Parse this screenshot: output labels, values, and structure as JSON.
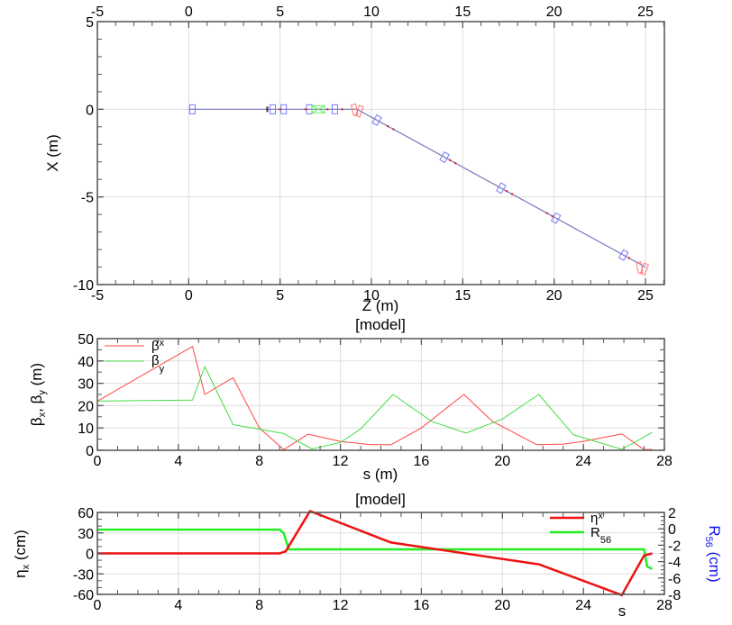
{
  "chart_data": [
    {
      "type": "line",
      "name": "floor-plan",
      "title": "",
      "xlabel": "Z (m)",
      "ylabel": "X (m)",
      "xlim": [
        -5,
        26
      ],
      "ylim": [
        -10,
        5
      ],
      "x_ticks": [
        "-5",
        "0",
        "5",
        "10",
        "15",
        "20",
        "25"
      ],
      "y_ticks": [
        "5",
        "0",
        "-5",
        "-10"
      ],
      "grid": true,
      "series": [
        {
          "name": "beamline",
          "color": "#7777bb",
          "x": [
            0,
            9.2,
            25.0
          ],
          "y": [
            0,
            0,
            -9.0
          ]
        }
      ],
      "elements": {
        "quadrupoles_blue": [
          0.2,
          4.6,
          5.2,
          6.6,
          8.0,
          10.3,
          14.0,
          17.1,
          20.1,
          23.8
        ],
        "solenoid_green": [
          7.1
        ],
        "bends_red": [
          9.2,
          24.8
        ]
      }
    },
    {
      "type": "line",
      "name": "beta-functions",
      "title": "[model]",
      "xlabel": "s (m)",
      "ylabel": "βx, βy (m)",
      "xlim": [
        0,
        28
      ],
      "ylim": [
        0,
        50
      ],
      "x_ticks": [
        "0",
        "4",
        "8",
        "12",
        "16",
        "20",
        "24",
        "28"
      ],
      "y_ticks": [
        "0",
        "10",
        "20",
        "30",
        "40",
        "50"
      ],
      "grid": true,
      "legend": [
        "βx",
        "βy"
      ],
      "legend_position": "upper-left",
      "series": [
        {
          "name": "βx",
          "color": "#ff4444",
          "x": [
            0,
            4.7,
            5.3,
            6.7,
            8,
            9.2,
            10.4,
            12,
            13.5,
            14.5,
            16,
            18.1,
            19.5,
            21.7,
            23,
            24,
            25.9,
            27,
            27.4
          ],
          "y": [
            22,
            46.5,
            25,
            32.5,
            10,
            0.3,
            7.2,
            4,
            2.5,
            2.5,
            10,
            25,
            13,
            2.5,
            2.8,
            4,
            7.3,
            0.3,
            0.4
          ]
        },
        {
          "name": "βy",
          "color": "#44dd44",
          "x": [
            0,
            4.7,
            5.3,
            6.7,
            9.2,
            10.6,
            12,
            13,
            14.6,
            16.5,
            18.2,
            20,
            21.8,
            23.5,
            25.9,
            27.4
          ],
          "y": [
            22,
            22.5,
            37.5,
            11.5,
            7.5,
            0.6,
            3.5,
            9.5,
            25,
            13,
            7.7,
            14,
            25,
            7,
            0.4,
            8
          ]
        }
      ]
    },
    {
      "type": "line",
      "name": "dispersion-r56",
      "title": "[model]",
      "xlabel": "s",
      "ylabel": "ηx (cm)",
      "ylabel_right": "R56 (cm)",
      "xlim": [
        0,
        28
      ],
      "ylim": [
        -60,
        60
      ],
      "ylim_right": [
        -8,
        2
      ],
      "x_ticks": [
        "0",
        "4",
        "8",
        "12",
        "16",
        "20",
        "24",
        "28"
      ],
      "y_ticks": [
        "60",
        "30",
        "0",
        "-30",
        "-60"
      ],
      "y_ticks_right": [
        "2",
        "0",
        "-2",
        "-4",
        "-6",
        "-8"
      ],
      "grid": true,
      "legend": [
        "ηx",
        "R56"
      ],
      "legend_position": "upper-right",
      "series": [
        {
          "name": "ηx",
          "axis": "left",
          "color": "#ee1111",
          "x": [
            0,
            9.0,
            9.3,
            10.5,
            14.5,
            21.8,
            25.9,
            27.0,
            27.4
          ],
          "y": [
            0,
            0,
            3,
            62,
            16,
            -16,
            -61,
            -3,
            0
          ]
        },
        {
          "name": "R56",
          "axis": "right",
          "color": "#22ee22",
          "x": [
            0,
            9.0,
            9.2,
            9.45,
            27.0,
            27.15,
            27.4
          ],
          "y": [
            -0.1,
            -0.1,
            -0.5,
            -2.5,
            -2.5,
            -4.6,
            -4.9
          ]
        }
      ]
    }
  ],
  "plots": {
    "top": {
      "xlabel": "Z (m)",
      "ylabel": "X (m)"
    },
    "middle": {
      "title": "[model]",
      "xlabel": "s (m)",
      "ylabel_main": "β",
      "ylabel_sub_x": "x",
      "ylabel_sep": ", ",
      "ylabel_sub_y": "y",
      "ylabel_unit": " (m)",
      "legend_bx_main": "β",
      "legend_bx_sub": "x",
      "legend_by_main": "β",
      "legend_by_sub": "y"
    },
    "bottom": {
      "title": "[model]",
      "xlabel": "s",
      "ylabel_main": "η",
      "ylabel_sub": "x",
      "ylabel_unit": " (cm)",
      "ylabel_right_main": "R",
      "ylabel_right_sub": "56",
      "ylabel_right_unit": " (cm)",
      "legend_eta_main": "η",
      "legend_eta_sub": "x",
      "legend_r56_main": "R",
      "legend_r56_sub": "56"
    }
  },
  "colors": {
    "beta_x": "#ff4444",
    "beta_y": "#44dd44",
    "eta_x": "#ee1111",
    "r56": "#22ee22",
    "r56_axis_label": "#1111ee",
    "beamline": "#7777bb",
    "quad": "#7777ff",
    "bend": "#ff7777",
    "solenoid": "#66ee66",
    "grid": "#dddddd",
    "axis": "#555555"
  }
}
